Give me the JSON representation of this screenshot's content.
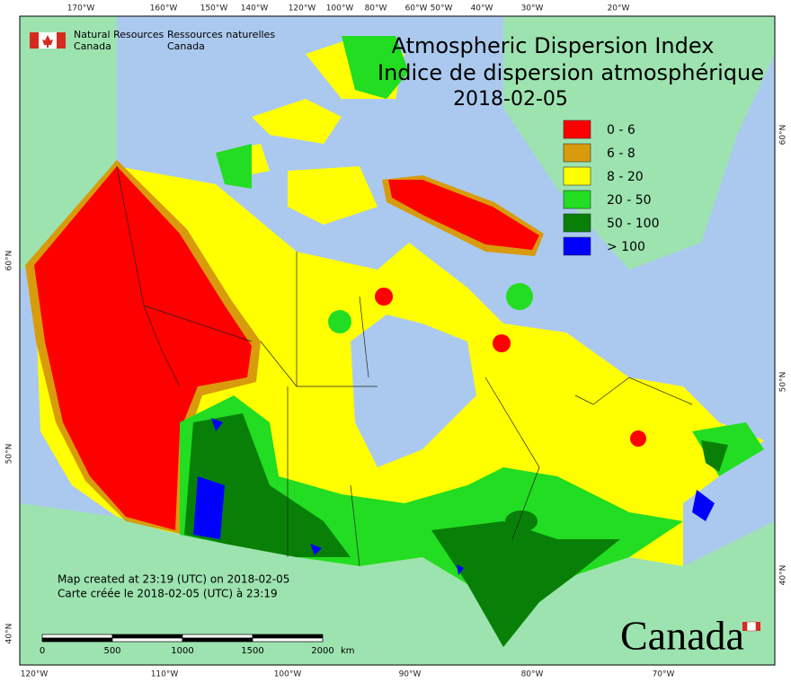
{
  "title": {
    "en": "Atmospheric Dispersion Index",
    "fr": "Indice de dispersion atmosphérique",
    "date": "2018-02-05"
  },
  "agency": {
    "en": [
      "Natural Resources",
      "Canada"
    ],
    "fr": [
      "Ressources naturelles",
      "Canada"
    ]
  },
  "legend": [
    {
      "label": "0 - 6",
      "color": "#ff0000"
    },
    {
      "label": "6 - 8",
      "color": "#d89b0c"
    },
    {
      "label": "8 - 20",
      "color": "#ffff00"
    },
    {
      "label": "20 - 50",
      "color": "#22dd22"
    },
    {
      "label": "50 - 100",
      "color": "#088008"
    },
    {
      "label": "> 100",
      "color": "#0000ff"
    }
  ],
  "credits": [
    "Map created at 23:19 (UTC) on 2018-02-05",
    "Carte créée le 2018-02-05 (UTC) à 23:19"
  ],
  "scale_bar": {
    "ticks": [
      "0",
      "500",
      "1000",
      "1500",
      "2000"
    ],
    "unit": "km"
  },
  "graticule": {
    "top": [
      "170°W",
      "160°W",
      "150°W",
      "140°W",
      "120°W",
      "100°W",
      "80°W",
      "60°W",
      "50°W",
      "40°W",
      "30°W",
      "20°W"
    ],
    "bottom": [
      "120°W",
      "110°W",
      "100°W",
      "90°W",
      "80°W",
      "70°W"
    ],
    "left": [
      "60°N",
      "50°N",
      "40°N"
    ],
    "right": [
      "60°N",
      "50°N",
      "40°N"
    ]
  },
  "wordmark": "Canada"
}
